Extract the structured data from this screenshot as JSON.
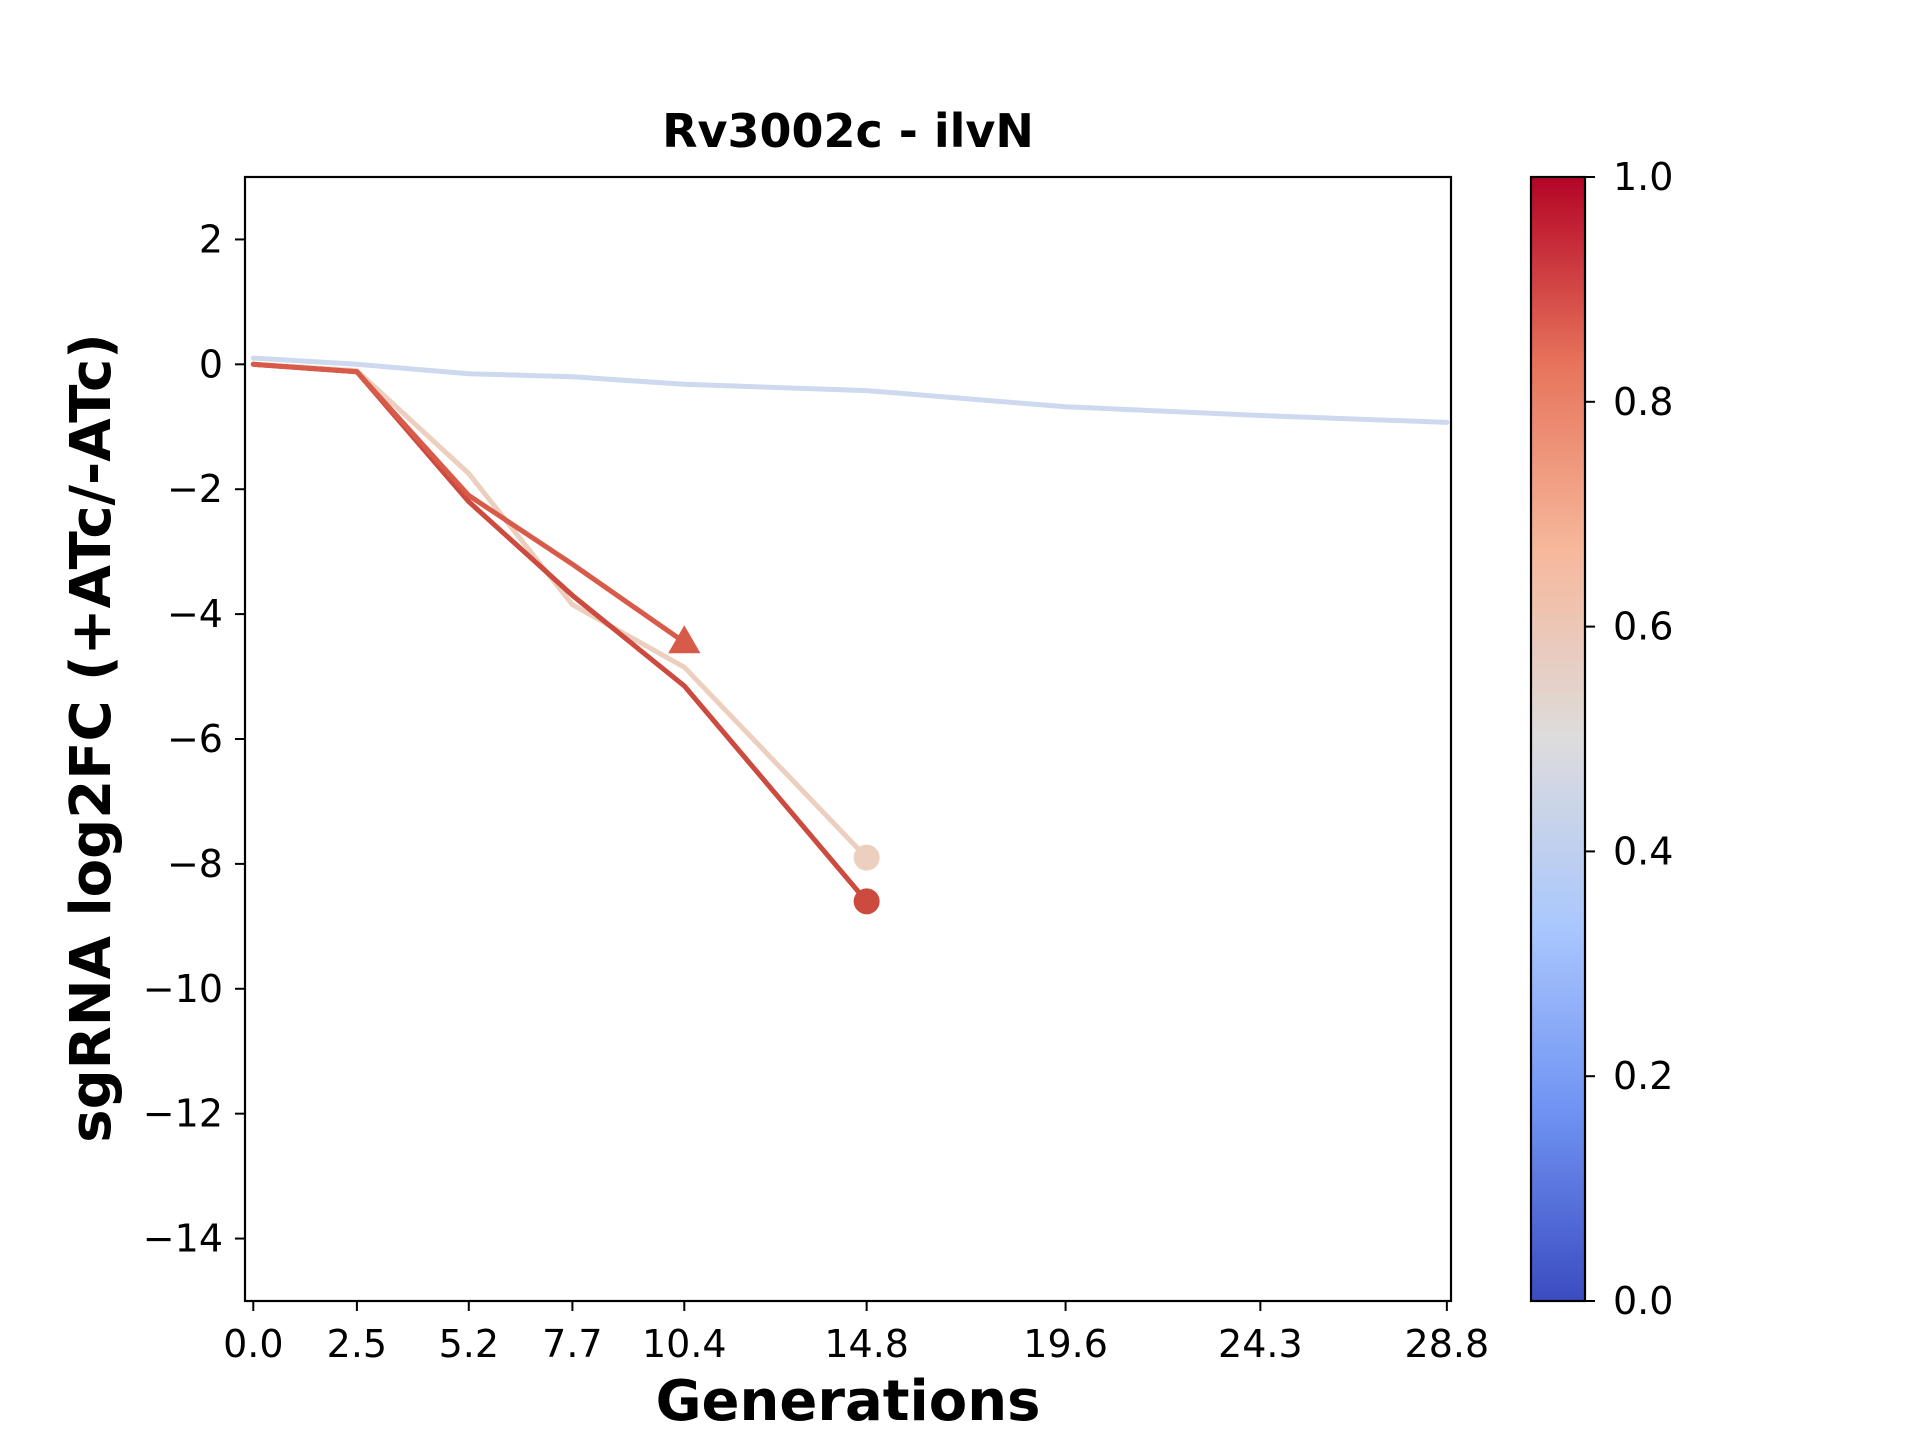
{
  "chart_data": {
    "type": "line",
    "title": "Rv3002c - ilvN",
    "xlabel": "Generations",
    "ylabel": "sgRNA log2FC (+ATc/-ATc)",
    "x_ticks": [
      "0.0",
      "2.5",
      "5.2",
      "7.7",
      "10.4",
      "14.8",
      "19.6",
      "24.3",
      "28.8"
    ],
    "y_ticks": [
      2,
      0,
      -2,
      -4,
      -6,
      -8,
      -10,
      -12,
      -14
    ],
    "xlim": [
      -0.2,
      28.9
    ],
    "ylim": [
      -15,
      3
    ],
    "grid": false,
    "series": [
      {
        "color": "#ccd9ee",
        "colorbar_value": 0.44,
        "x": [
          0.0,
          2.5,
          5.2,
          7.7,
          10.4,
          14.8,
          19.6,
          24.3,
          28.8
        ],
        "y": [
          0.1,
          0.0,
          -0.15,
          -0.2,
          -0.32,
          -0.42,
          -0.68,
          -0.82,
          -0.93
        ],
        "end_marker": "none"
      },
      {
        "color": "#eccfbf",
        "colorbar_value": 0.6,
        "x": [
          0.0,
          2.5,
          5.2,
          7.7,
          10.4,
          14.8
        ],
        "y": [
          0.0,
          -0.1,
          -1.75,
          -3.85,
          -4.85,
          -7.9
        ],
        "end_marker": "circle"
      },
      {
        "color": "#cc4a3e",
        "colorbar_value": 0.93,
        "x": [
          0.0,
          2.5,
          5.2,
          7.7,
          10.4,
          14.8
        ],
        "y": [
          0.0,
          -0.12,
          -2.2,
          -3.7,
          -5.15,
          -8.6
        ],
        "end_marker": "circle"
      },
      {
        "color": "#d85a48",
        "colorbar_value": 0.88,
        "x": [
          0.0,
          2.5,
          5.2,
          7.7,
          10.4
        ],
        "y": [
          0.0,
          -0.12,
          -2.1,
          -3.2,
          -4.45
        ],
        "end_marker": "triangle"
      }
    ],
    "colorbar": {
      "colormap": "coolwarm",
      "range": [
        0.0,
        1.0
      ],
      "ticks": [
        "0.0",
        "0.2",
        "0.4",
        "0.6",
        "0.8",
        "1.0"
      ],
      "stops": [
        "#3b4cc0",
        "#6f92f3",
        "#aac7fd",
        "#dddcdc",
        "#f7b89c",
        "#e7745b",
        "#b40426"
      ]
    }
  }
}
